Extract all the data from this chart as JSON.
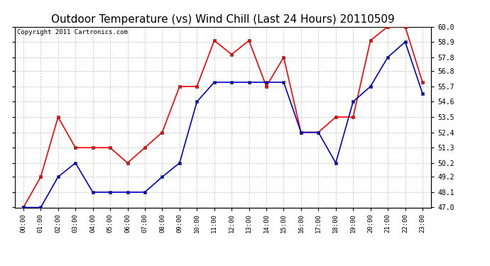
{
  "title": "Outdoor Temperature (vs) Wind Chill (Last 24 Hours) 20110509",
  "copyright": "Copyright 2011 Cartronics.com",
  "x_labels": [
    "00:00",
    "01:00",
    "02:00",
    "03:00",
    "04:00",
    "05:00",
    "06:00",
    "07:00",
    "08:00",
    "09:00",
    "10:00",
    "11:00",
    "12:00",
    "13:00",
    "14:00",
    "15:00",
    "16:00",
    "17:00",
    "18:00",
    "19:00",
    "20:00",
    "21:00",
    "22:00",
    "23:00"
  ],
  "temp_red": [
    47.0,
    49.2,
    53.5,
    51.3,
    51.3,
    51.3,
    50.2,
    51.3,
    52.4,
    55.7,
    55.7,
    59.0,
    58.0,
    59.0,
    55.7,
    57.8,
    52.4,
    52.4,
    53.5,
    53.5,
    59.0,
    60.0,
    60.0,
    56.0
  ],
  "wind_blue": [
    47.0,
    47.0,
    49.2,
    50.2,
    48.1,
    48.1,
    48.1,
    48.1,
    49.2,
    50.2,
    54.6,
    56.0,
    56.0,
    56.0,
    56.0,
    56.0,
    52.4,
    52.4,
    50.2,
    54.6,
    55.7,
    57.8,
    58.9,
    55.2
  ],
  "ylim_min": 47.0,
  "ylim_max": 60.0,
  "yticks": [
    47.0,
    48.1,
    49.2,
    50.2,
    51.3,
    52.4,
    53.5,
    54.6,
    55.7,
    56.8,
    57.8,
    58.9,
    60.0
  ],
  "red_color": "#ff0000",
  "blue_color": "#0000cc",
  "bg_color": "#ffffff",
  "grid_color": "#bbbbbb",
  "title_fontsize": 11,
  "copyright_fontsize": 6.5,
  "tick_fontsize": 7,
  "xtick_fontsize": 6.5
}
